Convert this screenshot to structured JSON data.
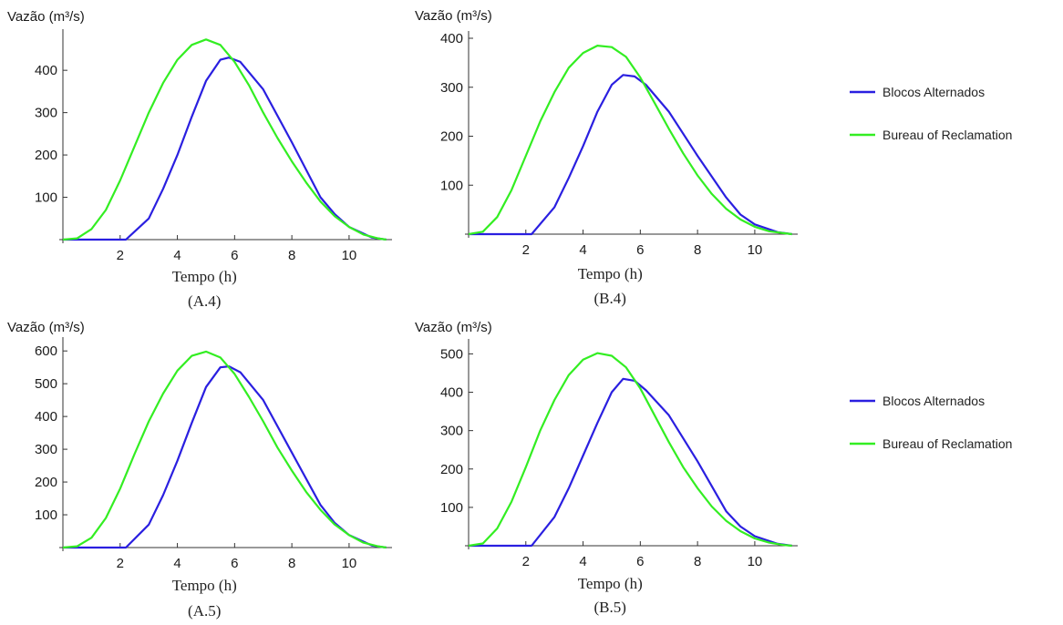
{
  "legend": {
    "entries": [
      {
        "label": "Blocos Alternados",
        "color": "#2a1fe0"
      },
      {
        "label": "Bureau of Reclamation",
        "color": "#33ee22"
      }
    ]
  },
  "chart_data": [
    {
      "type": "line",
      "panel_label": "(A.4)",
      "ylabel": "Vazão (m³/s)",
      "xlabel": "Tempo (h)",
      "xlim": [
        0,
        11.5
      ],
      "ylim": [
        0,
        480
      ],
      "xticks": [
        2,
        4,
        6,
        8,
        10
      ],
      "yticks": [
        100,
        200,
        300,
        400
      ],
      "series": [
        {
          "name": "Blocos Alternados",
          "color": "#2a1fe0",
          "x": [
            0,
            2.2,
            3,
            3.5,
            4,
            4.5,
            5,
            5.5,
            5.8,
            6.2,
            7,
            8,
            9,
            9.5,
            10,
            10.8,
            11.3
          ],
          "y": [
            0,
            0,
            50,
            120,
            200,
            290,
            375,
            425,
            430,
            420,
            355,
            230,
            100,
            60,
            30,
            5,
            0
          ]
        },
        {
          "name": "Bureau of Reclamation",
          "color": "#33ee22",
          "x": [
            0,
            0.5,
            1,
            1.5,
            2,
            2.5,
            3,
            3.5,
            4,
            4.5,
            5,
            5.5,
            6,
            6.5,
            7,
            7.5,
            8,
            8.5,
            9,
            9.5,
            10,
            10.5,
            11,
            11.3
          ],
          "y": [
            0,
            3,
            25,
            70,
            140,
            220,
            300,
            370,
            425,
            460,
            473,
            460,
            420,
            365,
            300,
            240,
            185,
            135,
            90,
            55,
            30,
            12,
            3,
            0
          ]
        }
      ]
    },
    {
      "type": "line",
      "panel_label": "(B.4)",
      "ylabel": "Vazão (m³/s)",
      "xlabel": "Tempo (h)",
      "xlim": [
        0,
        11.5
      ],
      "ylim": [
        0,
        400
      ],
      "xticks": [
        2,
        4,
        6,
        8,
        10
      ],
      "yticks": [
        100,
        200,
        300,
        400
      ],
      "series": [
        {
          "name": "Blocos Alternados",
          "color": "#2a1fe0",
          "x": [
            0,
            2.2,
            3,
            3.5,
            4,
            4.5,
            5,
            5.4,
            5.8,
            6.2,
            7,
            8,
            9,
            9.5,
            10,
            10.8,
            11.3
          ],
          "y": [
            0,
            0,
            55,
            115,
            180,
            250,
            305,
            325,
            322,
            305,
            250,
            160,
            75,
            40,
            20,
            4,
            0
          ]
        },
        {
          "name": "Bureau of Reclamation",
          "color": "#33ee22",
          "x": [
            0,
            0.5,
            1,
            1.5,
            2,
            2.5,
            3,
            3.5,
            4,
            4.5,
            5,
            5.5,
            6,
            6.5,
            7,
            7.5,
            8,
            8.5,
            9,
            9.5,
            10,
            10.5,
            11,
            11.3
          ],
          "y": [
            0,
            5,
            35,
            90,
            160,
            230,
            290,
            340,
            370,
            385,
            382,
            362,
            320,
            268,
            215,
            165,
            120,
            82,
            52,
            30,
            15,
            6,
            2,
            0
          ]
        }
      ]
    },
    {
      "type": "line",
      "panel_label": "(A.5)",
      "ylabel": "Vazão (m³/s)",
      "xlabel": "Tempo (h)",
      "xlim": [
        0,
        11.5
      ],
      "ylim": [
        0,
        620
      ],
      "xticks": [
        2,
        4,
        6,
        8,
        10
      ],
      "yticks": [
        100,
        200,
        300,
        400,
        500,
        600
      ],
      "series": [
        {
          "name": "Blocos Alternados",
          "color": "#2a1fe0",
          "x": [
            0,
            2.2,
            3,
            3.5,
            4,
            4.5,
            5,
            5.5,
            5.8,
            6.2,
            7,
            8,
            9,
            9.5,
            10,
            10.8,
            11.3
          ],
          "y": [
            0,
            0,
            70,
            160,
            265,
            380,
            490,
            550,
            553,
            535,
            450,
            290,
            130,
            75,
            38,
            6,
            0
          ]
        },
        {
          "name": "Bureau of Reclamation",
          "color": "#33ee22",
          "x": [
            0,
            0.5,
            1,
            1.5,
            2,
            2.5,
            3,
            3.5,
            4,
            4.5,
            5,
            5.5,
            6,
            6.5,
            7,
            7.5,
            8,
            8.5,
            9,
            9.5,
            10,
            10.5,
            11,
            11.3
          ],
          "y": [
            0,
            4,
            30,
            90,
            180,
            285,
            385,
            470,
            540,
            585,
            598,
            580,
            530,
            460,
            385,
            305,
            235,
            170,
            115,
            70,
            38,
            15,
            4,
            0
          ]
        }
      ]
    },
    {
      "type": "line",
      "panel_label": "(B.5)",
      "ylabel": "Vazão (m³/s)",
      "xlabel": "Tempo (h)",
      "xlim": [
        0,
        11.5
      ],
      "ylim": [
        0,
        520
      ],
      "xticks": [
        2,
        4,
        6,
        8,
        10
      ],
      "yticks": [
        100,
        200,
        300,
        400,
        500
      ],
      "series": [
        {
          "name": "Blocos Alternados",
          "color": "#2a1fe0",
          "x": [
            0,
            2.2,
            3,
            3.5,
            4,
            4.5,
            5,
            5.4,
            5.8,
            6.2,
            7,
            8,
            9,
            9.5,
            10,
            10.8,
            11.3
          ],
          "y": [
            0,
            0,
            75,
            150,
            235,
            320,
            400,
            435,
            430,
            405,
            340,
            220,
            90,
            50,
            25,
            5,
            0
          ]
        },
        {
          "name": "Bureau of Reclamation",
          "color": "#33ee22",
          "x": [
            0,
            0.5,
            1,
            1.5,
            2,
            2.5,
            3,
            3.5,
            4,
            4.5,
            5,
            5.5,
            6,
            6.5,
            7,
            7.5,
            8,
            8.5,
            9,
            9.5,
            10,
            10.5,
            11,
            11.3
          ],
          "y": [
            0,
            6,
            45,
            115,
            205,
            300,
            380,
            445,
            485,
            502,
            495,
            465,
            410,
            340,
            270,
            205,
            150,
            102,
            65,
            38,
            19,
            8,
            2,
            0
          ]
        }
      ]
    }
  ]
}
